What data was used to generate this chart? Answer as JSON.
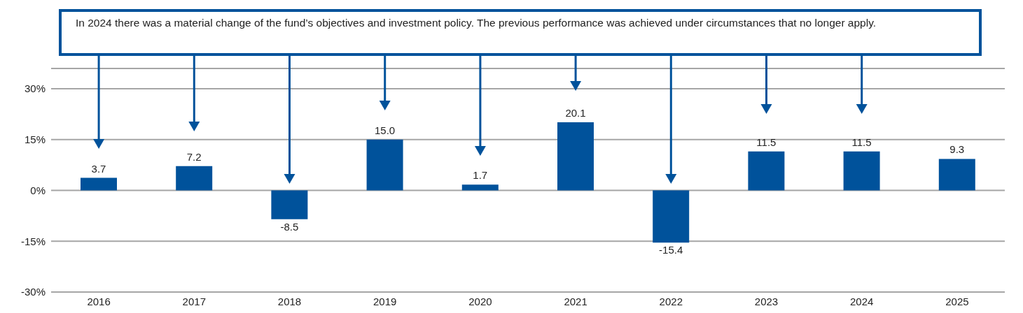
{
  "chart_data": {
    "type": "bar",
    "categories": [
      "2016",
      "2017",
      "2018",
      "2019",
      "2020",
      "2021",
      "2022",
      "2023",
      "2024",
      "2025"
    ],
    "values": [
      3.7,
      7.2,
      -8.5,
      15.0,
      1.7,
      20.1,
      -15.4,
      11.5,
      11.5,
      9.3
    ],
    "value_labels": [
      "3.7",
      "7.2",
      "-8.5",
      "15.0",
      "1.7",
      "20.1",
      "-15.4",
      "11.5",
      "11.5",
      "9.3"
    ],
    "color": "#00529b",
    "ylim": [
      -30,
      36
    ],
    "yticks": [
      {
        "value": -30,
        "label": "-30%"
      },
      {
        "value": -15,
        "label": "-15%"
      },
      {
        "value": 0,
        "label": "0%"
      },
      {
        "value": 15,
        "label": "15%"
      },
      {
        "value": 30,
        "label": "30%"
      }
    ],
    "grid": "y",
    "legend": false,
    "annotations": [
      "In 2024 there was a material change of the fund’s objectives and investment policy. The previous performance was achieved under circumstances that no longer apply."
    ]
  }
}
